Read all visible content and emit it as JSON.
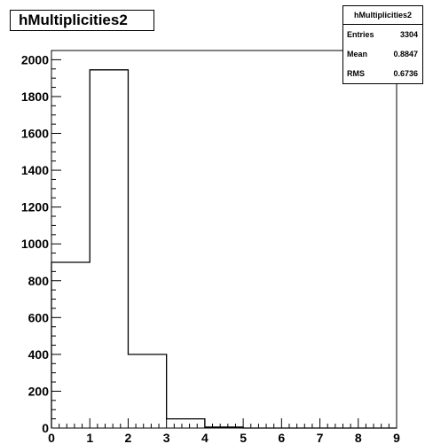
{
  "chart_data": {
    "type": "histogram",
    "title": "hMultiplicities2",
    "xlabel": "",
    "ylabel": "",
    "xlim": [
      0,
      9
    ],
    "ylim": [
      0,
      2050
    ],
    "x_ticks": [
      0,
      1,
      2,
      3,
      4,
      5,
      6,
      7,
      8,
      9
    ],
    "y_ticks": [
      0,
      200,
      400,
      600,
      800,
      1000,
      1200,
      1400,
      1600,
      1800,
      2000
    ],
    "bin_edges": [
      0,
      1,
      2,
      3,
      4,
      5,
      6,
      7,
      8,
      9
    ],
    "values": [
      900,
      1945,
      400,
      50,
      5,
      0,
      0,
      0,
      0
    ],
    "grid": false,
    "stats": {
      "name": "hMultiplicities2",
      "rows": [
        {
          "label": "Entries",
          "value": "3304"
        },
        {
          "label": "Mean",
          "value": "0.8847"
        },
        {
          "label": "RMS",
          "value": "0.6736"
        }
      ]
    }
  }
}
